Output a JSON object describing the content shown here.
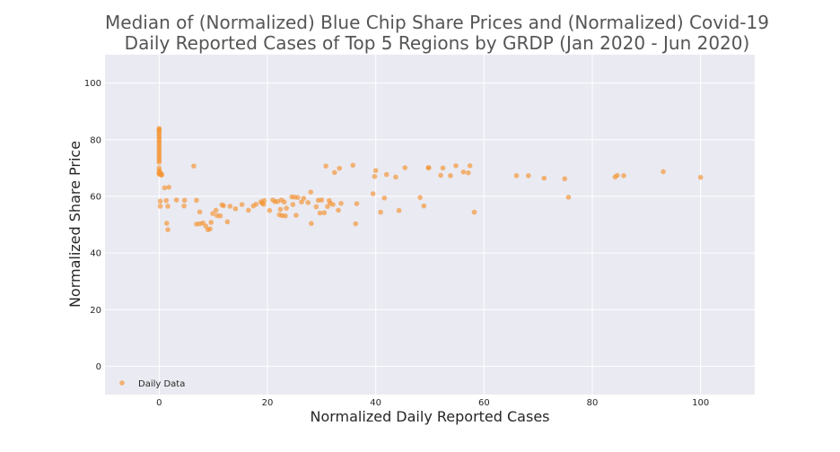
{
  "chart_data": {
    "type": "scatter",
    "title_lines": [
      "Median of (Normalized) Blue Chip Share Prices and (Normalized) Covid-19",
      "Daily Reported Cases of Top 5 Regions by GRDP (Jan 2020 - Jun 2020)"
    ],
    "xlabel": "Normalized Daily Reported Cases",
    "ylabel": "Normalized Share Price",
    "xlim": [
      -10,
      110
    ],
    "ylim": [
      -10,
      110
    ],
    "xticks": [
      0,
      20,
      40,
      60,
      80,
      100
    ],
    "yticks": [
      0,
      20,
      40,
      60,
      80,
      100
    ],
    "grid": true,
    "legend": {
      "position": "bottom-left"
    },
    "colors": {
      "background": "#EAEAF2",
      "grid": "#FFFFFF",
      "marker": "#F5922E"
    },
    "series": [
      {
        "name": "Daily Data",
        "points": [
          [
            0,
            84
          ],
          [
            0,
            83.5
          ],
          [
            0,
            83
          ],
          [
            0,
            82.3
          ],
          [
            0,
            81.5
          ],
          [
            0,
            80.8
          ],
          [
            0,
            80
          ],
          [
            0,
            79.2
          ],
          [
            0,
            78.5
          ],
          [
            0,
            77.6
          ],
          [
            0,
            76.8
          ],
          [
            0,
            76
          ],
          [
            0,
            75.2
          ],
          [
            0,
            74.4
          ],
          [
            0,
            73.6
          ],
          [
            0,
            72.8
          ],
          [
            0,
            72
          ],
          [
            0,
            70
          ],
          [
            0,
            69
          ],
          [
            0,
            68.2
          ],
          [
            0,
            67.8
          ],
          [
            0.2,
            68.5
          ],
          [
            0.4,
            67.5
          ],
          [
            0.2,
            58.3
          ],
          [
            0.2,
            56.5
          ],
          [
            0.5,
            67.7
          ],
          [
            1,
            63
          ],
          [
            1.3,
            58.5
          ],
          [
            1.4,
            50.5
          ],
          [
            1.6,
            56.5
          ],
          [
            1.6,
            48.2
          ],
          [
            1.8,
            63.2
          ],
          [
            3.2,
            58.7
          ],
          [
            4.6,
            56.6
          ],
          [
            4.7,
            58.6
          ],
          [
            6.4,
            70.7
          ],
          [
            6.9,
            58.6
          ],
          [
            6.9,
            50.2
          ],
          [
            7.5,
            50.3
          ],
          [
            7.5,
            54.5
          ],
          [
            8.1,
            50.6
          ],
          [
            8.6,
            49.5
          ],
          [
            9,
            48.2
          ],
          [
            9.4,
            48.5
          ],
          [
            9.6,
            50.8
          ],
          [
            9.9,
            53.9
          ],
          [
            10.5,
            55.1
          ],
          [
            10.7,
            53.2
          ],
          [
            11.3,
            53.1
          ],
          [
            11.6,
            57
          ],
          [
            11.9,
            56.7
          ],
          [
            12.6,
            51
          ],
          [
            13.1,
            56.5
          ],
          [
            14.1,
            55.6
          ],
          [
            15.3,
            57.1
          ],
          [
            16.5,
            55.1
          ],
          [
            17.4,
            56.6
          ],
          [
            17.9,
            57.2
          ],
          [
            18.8,
            58.1
          ],
          [
            19,
            57.6
          ],
          [
            19.3,
            57.2
          ],
          [
            19.4,
            58.5
          ],
          [
            20.4,
            55
          ],
          [
            21,
            58.7
          ],
          [
            21.4,
            58.1
          ],
          [
            21.9,
            58.2
          ],
          [
            22.2,
            53.5
          ],
          [
            22.4,
            55.4
          ],
          [
            22.6,
            58.7
          ],
          [
            22.7,
            53.2
          ],
          [
            23.1,
            58
          ],
          [
            23.3,
            53.1
          ],
          [
            23.5,
            55.8
          ],
          [
            24.5,
            59.8
          ],
          [
            24.7,
            57.1
          ],
          [
            25,
            59.7
          ],
          [
            25.3,
            53.3
          ],
          [
            25.6,
            59.6
          ],
          [
            26.3,
            58
          ],
          [
            26.7,
            59.3
          ],
          [
            27.5,
            57.8
          ],
          [
            28,
            61.5
          ],
          [
            28.1,
            50.4
          ],
          [
            29,
            56.3
          ],
          [
            29.4,
            58.6
          ],
          [
            29.7,
            54.1
          ],
          [
            30,
            58.7
          ],
          [
            30.5,
            54.2
          ],
          [
            30.8,
            70.7
          ],
          [
            31.1,
            56.4
          ],
          [
            31.4,
            58.5
          ],
          [
            31.6,
            57.6
          ],
          [
            32.1,
            57.1
          ],
          [
            32.4,
            68.4
          ],
          [
            33.1,
            55.1
          ],
          [
            33.3,
            69.9
          ],
          [
            33.6,
            57.5
          ],
          [
            35.8,
            71
          ],
          [
            36.3,
            50.3
          ],
          [
            36.5,
            57.4
          ],
          [
            39.5,
            60.9
          ],
          [
            39.8,
            67
          ],
          [
            40,
            69.1
          ],
          [
            40.9,
            54.4
          ],
          [
            41.6,
            59.4
          ],
          [
            42,
            67.7
          ],
          [
            43.7,
            66.8
          ],
          [
            44.3,
            55
          ],
          [
            45.4,
            70.1
          ],
          [
            48.2,
            59.6
          ],
          [
            48.9,
            56.6
          ],
          [
            49.7,
            70.1
          ],
          [
            49.8,
            70.1
          ],
          [
            52,
            67.4
          ],
          [
            52.4,
            70
          ],
          [
            53.8,
            67.3
          ],
          [
            54.8,
            70.8
          ],
          [
            56.2,
            68.6
          ],
          [
            57.1,
            68.3
          ],
          [
            57.4,
            70.8
          ],
          [
            58.2,
            54.4
          ],
          [
            66,
            67.3
          ],
          [
            68.2,
            67.3
          ],
          [
            71.1,
            66.4
          ],
          [
            74.9,
            66.2
          ],
          [
            75.6,
            59.7
          ],
          [
            84.2,
            66.8
          ],
          [
            84.6,
            67.4
          ],
          [
            85.8,
            67.3
          ],
          [
            93.1,
            68.7
          ],
          [
            100,
            66.7
          ]
        ]
      }
    ]
  }
}
